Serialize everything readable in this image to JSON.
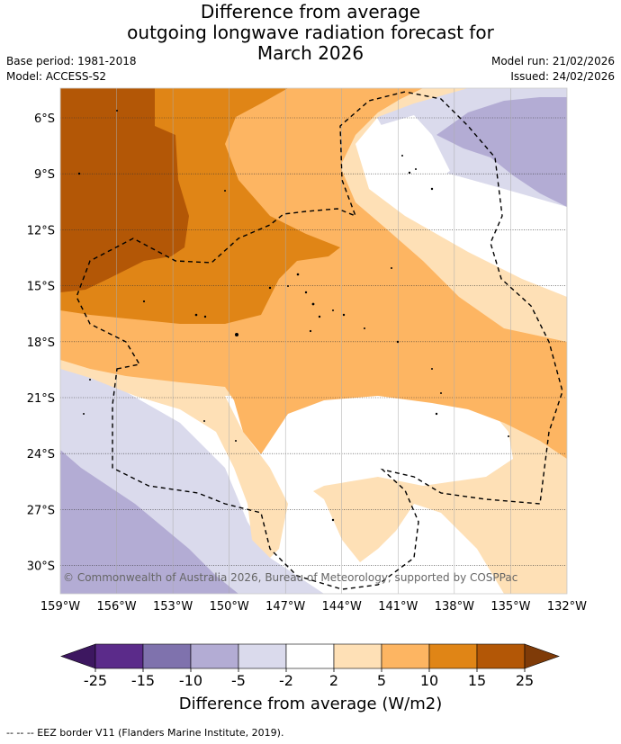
{
  "title": {
    "line1": "Difference from average",
    "line2": "outgoing longwave radiation forecast for",
    "line3": "March 2026"
  },
  "meta": {
    "base_period": "Base period: 1981-2018",
    "model": "Model: ACCESS-S2",
    "model_run": "Model run: 21/02/2026",
    "issued": "Issued: 24/02/2026"
  },
  "axes": {
    "lat_labels": [
      "6°S",
      "9°S",
      "12°S",
      "15°S",
      "18°S",
      "21°S",
      "24°S",
      "27°S",
      "30°S"
    ],
    "lon_labels": [
      "159°W",
      "156°W",
      "153°W",
      "150°W",
      "147°W",
      "144°W",
      "141°W",
      "138°W",
      "135°W",
      "132°W"
    ]
  },
  "copyright": "© Commonwealth of Australia 2026, Bureau of Meteorology, supported by COSPPac",
  "legend": {
    "ticks": [
      "-25",
      "-15",
      "-10",
      "-5",
      "-2",
      "2",
      "5",
      "10",
      "15",
      "25"
    ],
    "colors": [
      "#3d1760",
      "#5b2b8a",
      "#7f72ad",
      "#b3acd4",
      "#dadaec",
      "#ffffff",
      "#fee0b6",
      "#fdb562",
      "#e08516",
      "#b35706",
      "#7f3b08"
    ],
    "label": "Difference from average (W/m2)"
  },
  "footer": "--  --  -- EEZ border V11 (Flanders Marine Institute, 2019).",
  "colors": {
    "dark_orange": "#b35706",
    "orange": "#e08516",
    "light_orange": "#fdb562",
    "pale_orange": "#fee0b6",
    "white": "#ffffff",
    "pale_purple": "#dadaec",
    "light_purple": "#b3acd4"
  }
}
